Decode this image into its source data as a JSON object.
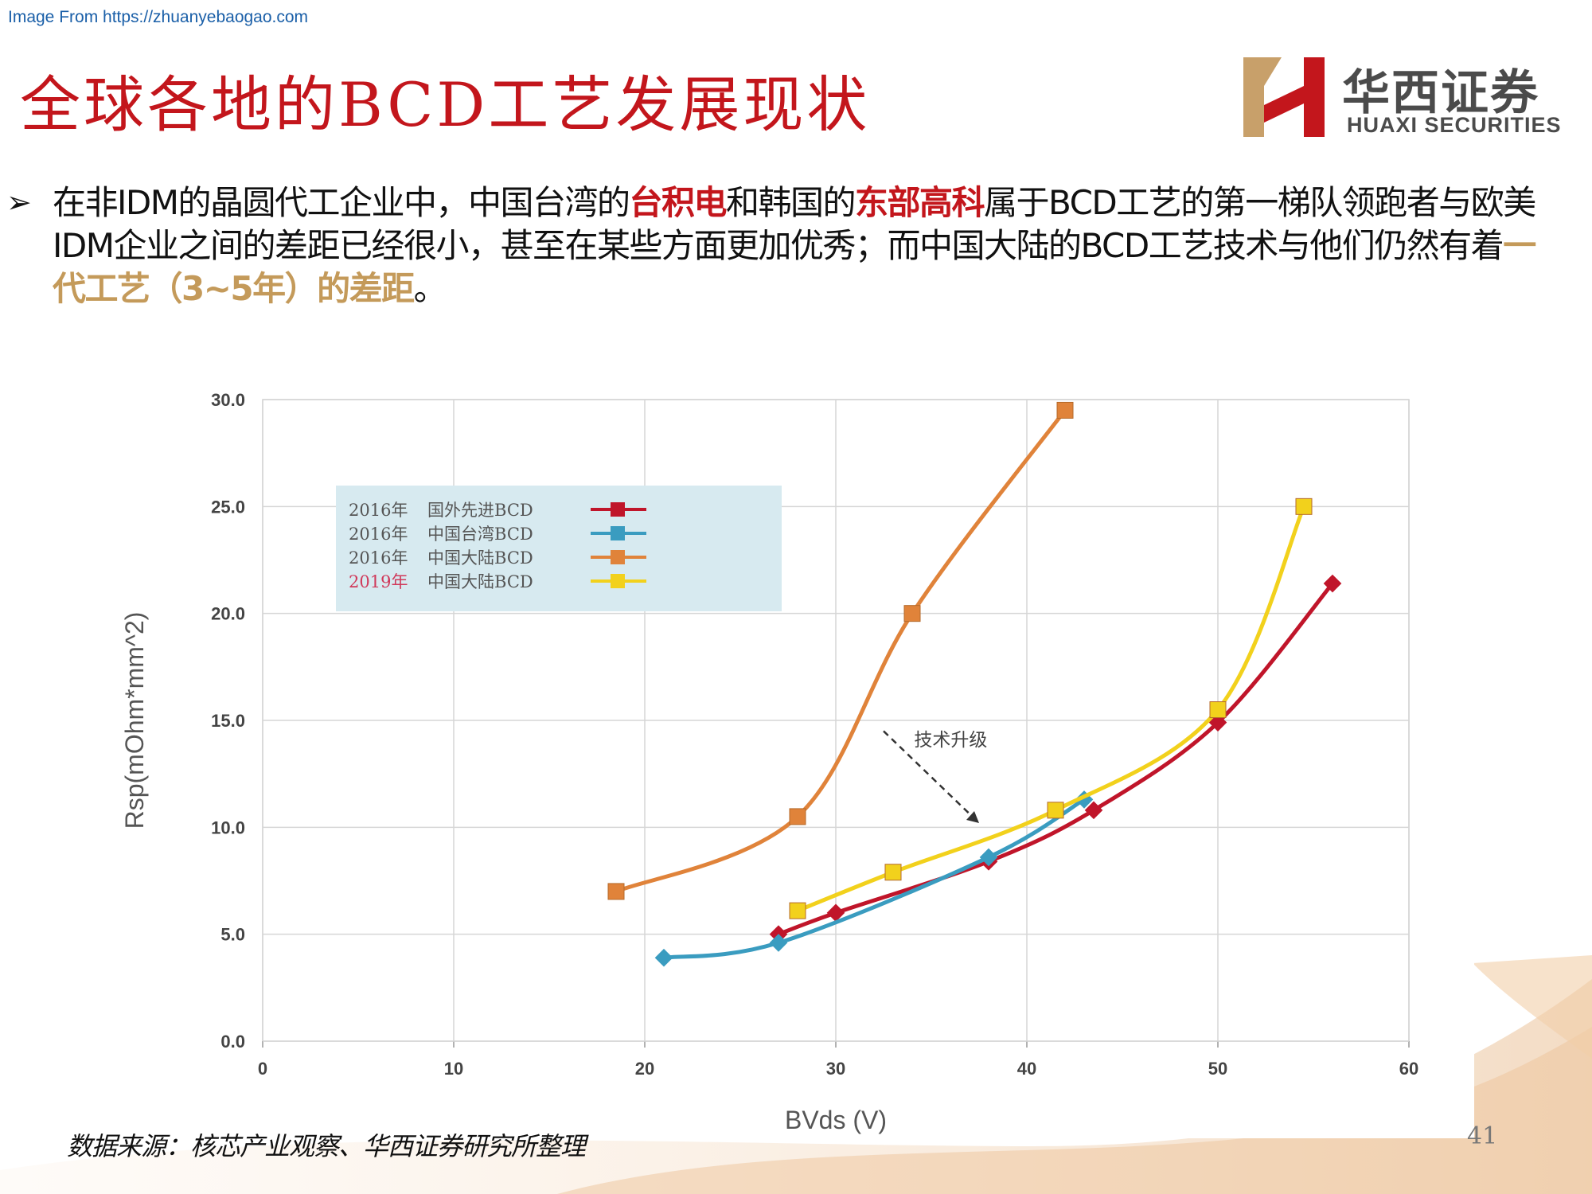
{
  "header": {
    "source_url": "Image From https://zhuanyebaogao.com",
    "title": "全球各地的BCD工艺发展现状",
    "logo_cn": "华西证券",
    "logo_en": "HUAXI SECURITIES",
    "brand_color": "#c3161c"
  },
  "bullet": {
    "icon": "arrow-bullet-icon",
    "p1": "在非IDM的晶圆代工企业中，中国台湾的",
    "h1": "台积电",
    "p2": "和韩国的",
    "h2": "东部高科",
    "p3": "属于BCD工艺的第一梯队领跑者与欧美IDM企业之间的差距已经很小，甚至在某些方面更加优秀；而中国大陆的BCD工艺技术与他们仍然有着",
    "h3": "一代工艺（3~5年）的差距",
    "p4": "。"
  },
  "footer": {
    "source": "数据来源：核芯产业观察、华西证券研究所整理",
    "page": "41"
  },
  "chart_data": {
    "type": "line",
    "xlabel": "BVds (V)",
    "ylabel": "Rsp(mOhm*mm^2)",
    "xlim": [
      0,
      60
    ],
    "ylim": [
      0,
      30
    ],
    "xticks": [
      "0",
      "10",
      "20",
      "30",
      "40",
      "50",
      "60"
    ],
    "yticks": [
      "0.0",
      "5.0",
      "10.0",
      "15.0",
      "20.0",
      "25.0",
      "30.0"
    ],
    "grid": true,
    "legend_position": "top-left",
    "annotation": "技术升级",
    "series": [
      {
        "year": "2016年",
        "name": "国外先进BCD",
        "color": "#c0152a",
        "marker": "diamond",
        "x": [
          27,
          30,
          38,
          43.5,
          50,
          56
        ],
        "y": [
          5.0,
          6.0,
          8.4,
          10.8,
          14.9,
          21.4
        ]
      },
      {
        "year": "2016年",
        "name": "中国台湾BCD",
        "color": "#3a9cc0",
        "marker": "diamond",
        "x": [
          21,
          27,
          38,
          43
        ],
        "y": [
          3.9,
          4.6,
          8.6,
          11.3
        ]
      },
      {
        "year": "2016年",
        "name": "中国大陆BCD",
        "color": "#e0833a",
        "marker": "square",
        "x": [
          18.5,
          28,
          34,
          42
        ],
        "y": [
          7.0,
          10.5,
          20.0,
          29.5
        ]
      },
      {
        "year": "2019年",
        "name": "中国大陆BCD",
        "color": "#f2d11c",
        "marker": "square",
        "x": [
          28,
          33,
          41.5,
          50,
          54.5
        ],
        "y": [
          6.1,
          7.9,
          10.8,
          15.5,
          25.0
        ]
      }
    ]
  }
}
